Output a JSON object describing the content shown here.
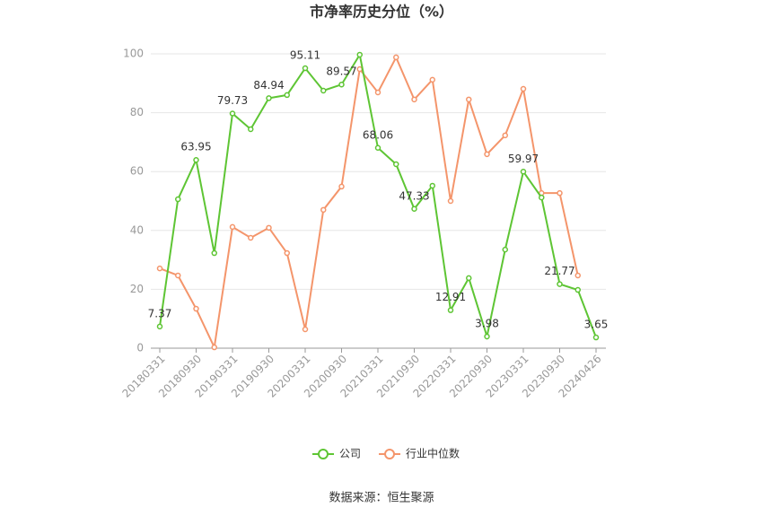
{
  "chart_data": {
    "type": "line",
    "title": "市净率历史分位（%）",
    "source": "数据来源：恒生聚源",
    "categories": [
      "20180331",
      null,
      "20180930",
      null,
      "20190331",
      null,
      "20190930",
      null,
      "20200331",
      null,
      "20200930",
      null,
      "20210331",
      null,
      "20210930",
      null,
      "20220331",
      null,
      "20220930",
      null,
      "20230331",
      null,
      "20230930",
      null,
      "20240426"
    ],
    "series": [
      {
        "name": "公司",
        "color": "#5ec534",
        "values": [
          7.37,
          50.6,
          63.95,
          32.3,
          79.73,
          74.4,
          84.94,
          86.0,
          95.11,
          87.5,
          89.57,
          99.7,
          68.06,
          62.5,
          47.33,
          55.2,
          12.91,
          23.8,
          3.98,
          33.5,
          59.97,
          51.2,
          21.77,
          19.8,
          3.65
        ],
        "value_labels": [
          "7.37",
          null,
          "63.95",
          null,
          "79.73",
          null,
          "84.94",
          null,
          "95.11",
          null,
          "89.57",
          null,
          "68.06",
          null,
          "47.33",
          null,
          "12.91",
          null,
          "3.98",
          null,
          "59.97",
          null,
          "21.77",
          null,
          "3.65"
        ]
      },
      {
        "name": "行业中位数",
        "color": "#f4956b",
        "values": [
          27.1,
          24.7,
          13.4,
          0.3,
          41.2,
          37.5,
          40.9,
          32.3,
          6.4,
          47.0,
          54.9,
          94.8,
          86.9,
          98.8,
          84.5,
          91.2,
          50.0,
          84.5,
          65.9,
          72.3,
          88.1,
          52.7,
          52.7,
          24.7,
          null
        ]
      }
    ],
    "ylim": [
      0,
      100
    ],
    "yticks": [
      0,
      20,
      40,
      60,
      80,
      100
    ],
    "grid": true,
    "legend": "bottom"
  }
}
